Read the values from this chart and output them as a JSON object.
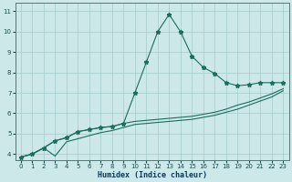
{
  "xlabel": "Humidex (Indice chaleur)",
  "bg_color": "#cce8e8",
  "grid_color": "#aacece",
  "line_color": "#1a6e5e",
  "xlim": [
    -0.5,
    23.5
  ],
  "ylim": [
    3.7,
    11.4
  ],
  "xticks": [
    0,
    1,
    2,
    3,
    4,
    5,
    6,
    7,
    8,
    9,
    10,
    11,
    12,
    13,
    14,
    15,
    16,
    17,
    18,
    19,
    20,
    21,
    22,
    23
  ],
  "yticks": [
    4,
    5,
    6,
    7,
    8,
    9,
    10,
    11
  ],
  "x_data": [
    0,
    1,
    2,
    3,
    4,
    5,
    6,
    7,
    8,
    9,
    10,
    11,
    12,
    13,
    14,
    15,
    16,
    17,
    18,
    19,
    20,
    21,
    22,
    23
  ],
  "y_main": [
    3.85,
    4.0,
    4.3,
    4.65,
    4.8,
    5.1,
    5.2,
    5.3,
    5.35,
    5.5,
    7.0,
    8.5,
    10.0,
    10.85,
    10.0,
    8.8,
    8.25,
    7.95,
    7.5,
    7.35,
    7.4,
    7.5,
    7.5,
    7.5
  ],
  "y_upper": [
    3.85,
    4.0,
    4.3,
    4.65,
    4.8,
    5.1,
    5.2,
    5.3,
    5.35,
    5.5,
    5.6,
    5.65,
    5.7,
    5.75,
    5.8,
    5.85,
    5.95,
    6.05,
    6.2,
    6.4,
    6.55,
    6.75,
    6.95,
    7.2
  ],
  "y_lower": [
    3.85,
    4.0,
    4.3,
    3.9,
    4.6,
    4.75,
    4.9,
    5.05,
    5.15,
    5.3,
    5.45,
    5.5,
    5.55,
    5.6,
    5.65,
    5.7,
    5.8,
    5.9,
    6.05,
    6.2,
    6.4,
    6.6,
    6.8,
    7.1
  ]
}
